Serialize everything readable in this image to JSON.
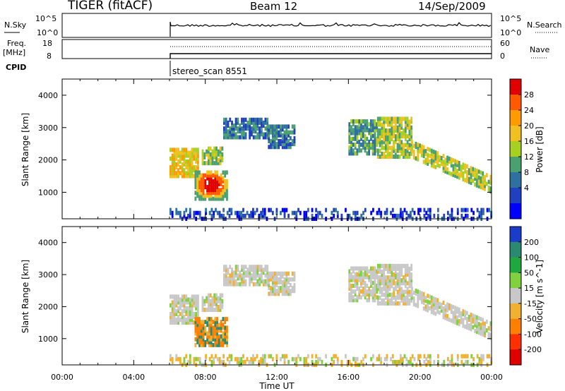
{
  "header": {
    "title_left": "TIGER (fitACF)",
    "title_center": "Beam 12",
    "title_right": "14/Sep/2009"
  },
  "strips": {
    "nsky_label": "N.Sky",
    "nsky_ticks": [
      "10^5",
      "10^0"
    ],
    "nsearch_label": "N.Search",
    "nsearch_ticks": [
      "10^5",
      "10^0"
    ],
    "freq_label_1": "Freq.",
    "freq_label_2": "[MHz]",
    "freq_ticks": [
      "18",
      "8"
    ],
    "nave_label": "Nave",
    "nave_ticks": [
      "60",
      "0"
    ],
    "cpid_label": "CPID",
    "cpid_value": "stereo_scan 8551"
  },
  "chart_data": [
    {
      "type": "heatmap",
      "ylabel": "Slant Range [km]",
      "yticks": [
        1000,
        2000,
        3000,
        4000
      ],
      "ylim": [
        180,
        4500
      ],
      "xlim": [
        0,
        24
      ],
      "colorbar_label": "Power [dB]",
      "colorbar_ticks": [
        "28",
        "24",
        "20",
        "16",
        "12",
        "8",
        "4"
      ],
      "colorbar_colors": [
        "#e00000",
        "#ff5a00",
        "#ff9a00",
        "#f0c020",
        "#a8d020",
        "#4aa070",
        "#3070a0",
        "#2040c0",
        "#0000ff"
      ]
    },
    {
      "type": "heatmap",
      "ylabel": "Slant Range [km]",
      "yticks": [
        1000,
        2000,
        3000,
        4000
      ],
      "ylim": [
        180,
        4500
      ],
      "xlim": [
        0,
        24
      ],
      "xlabel": "Time UT",
      "xticks": [
        "00:00",
        "04:00",
        "08:00",
        "12:00",
        "16:00",
        "20:00",
        "00:00"
      ],
      "colorbar_label": "Velocity [m s^-1]",
      "colorbar_ticks": [
        "200",
        "100",
        "50",
        "15",
        "-15",
        "-50",
        "-100",
        "-200"
      ],
      "colorbar_colors": [
        "#1a3cc8",
        "#2a8a70",
        "#20a840",
        "#80d040",
        "#c8c8c8",
        "#f0b030",
        "#ff8000",
        "#ff3000",
        "#e00000"
      ]
    }
  ]
}
